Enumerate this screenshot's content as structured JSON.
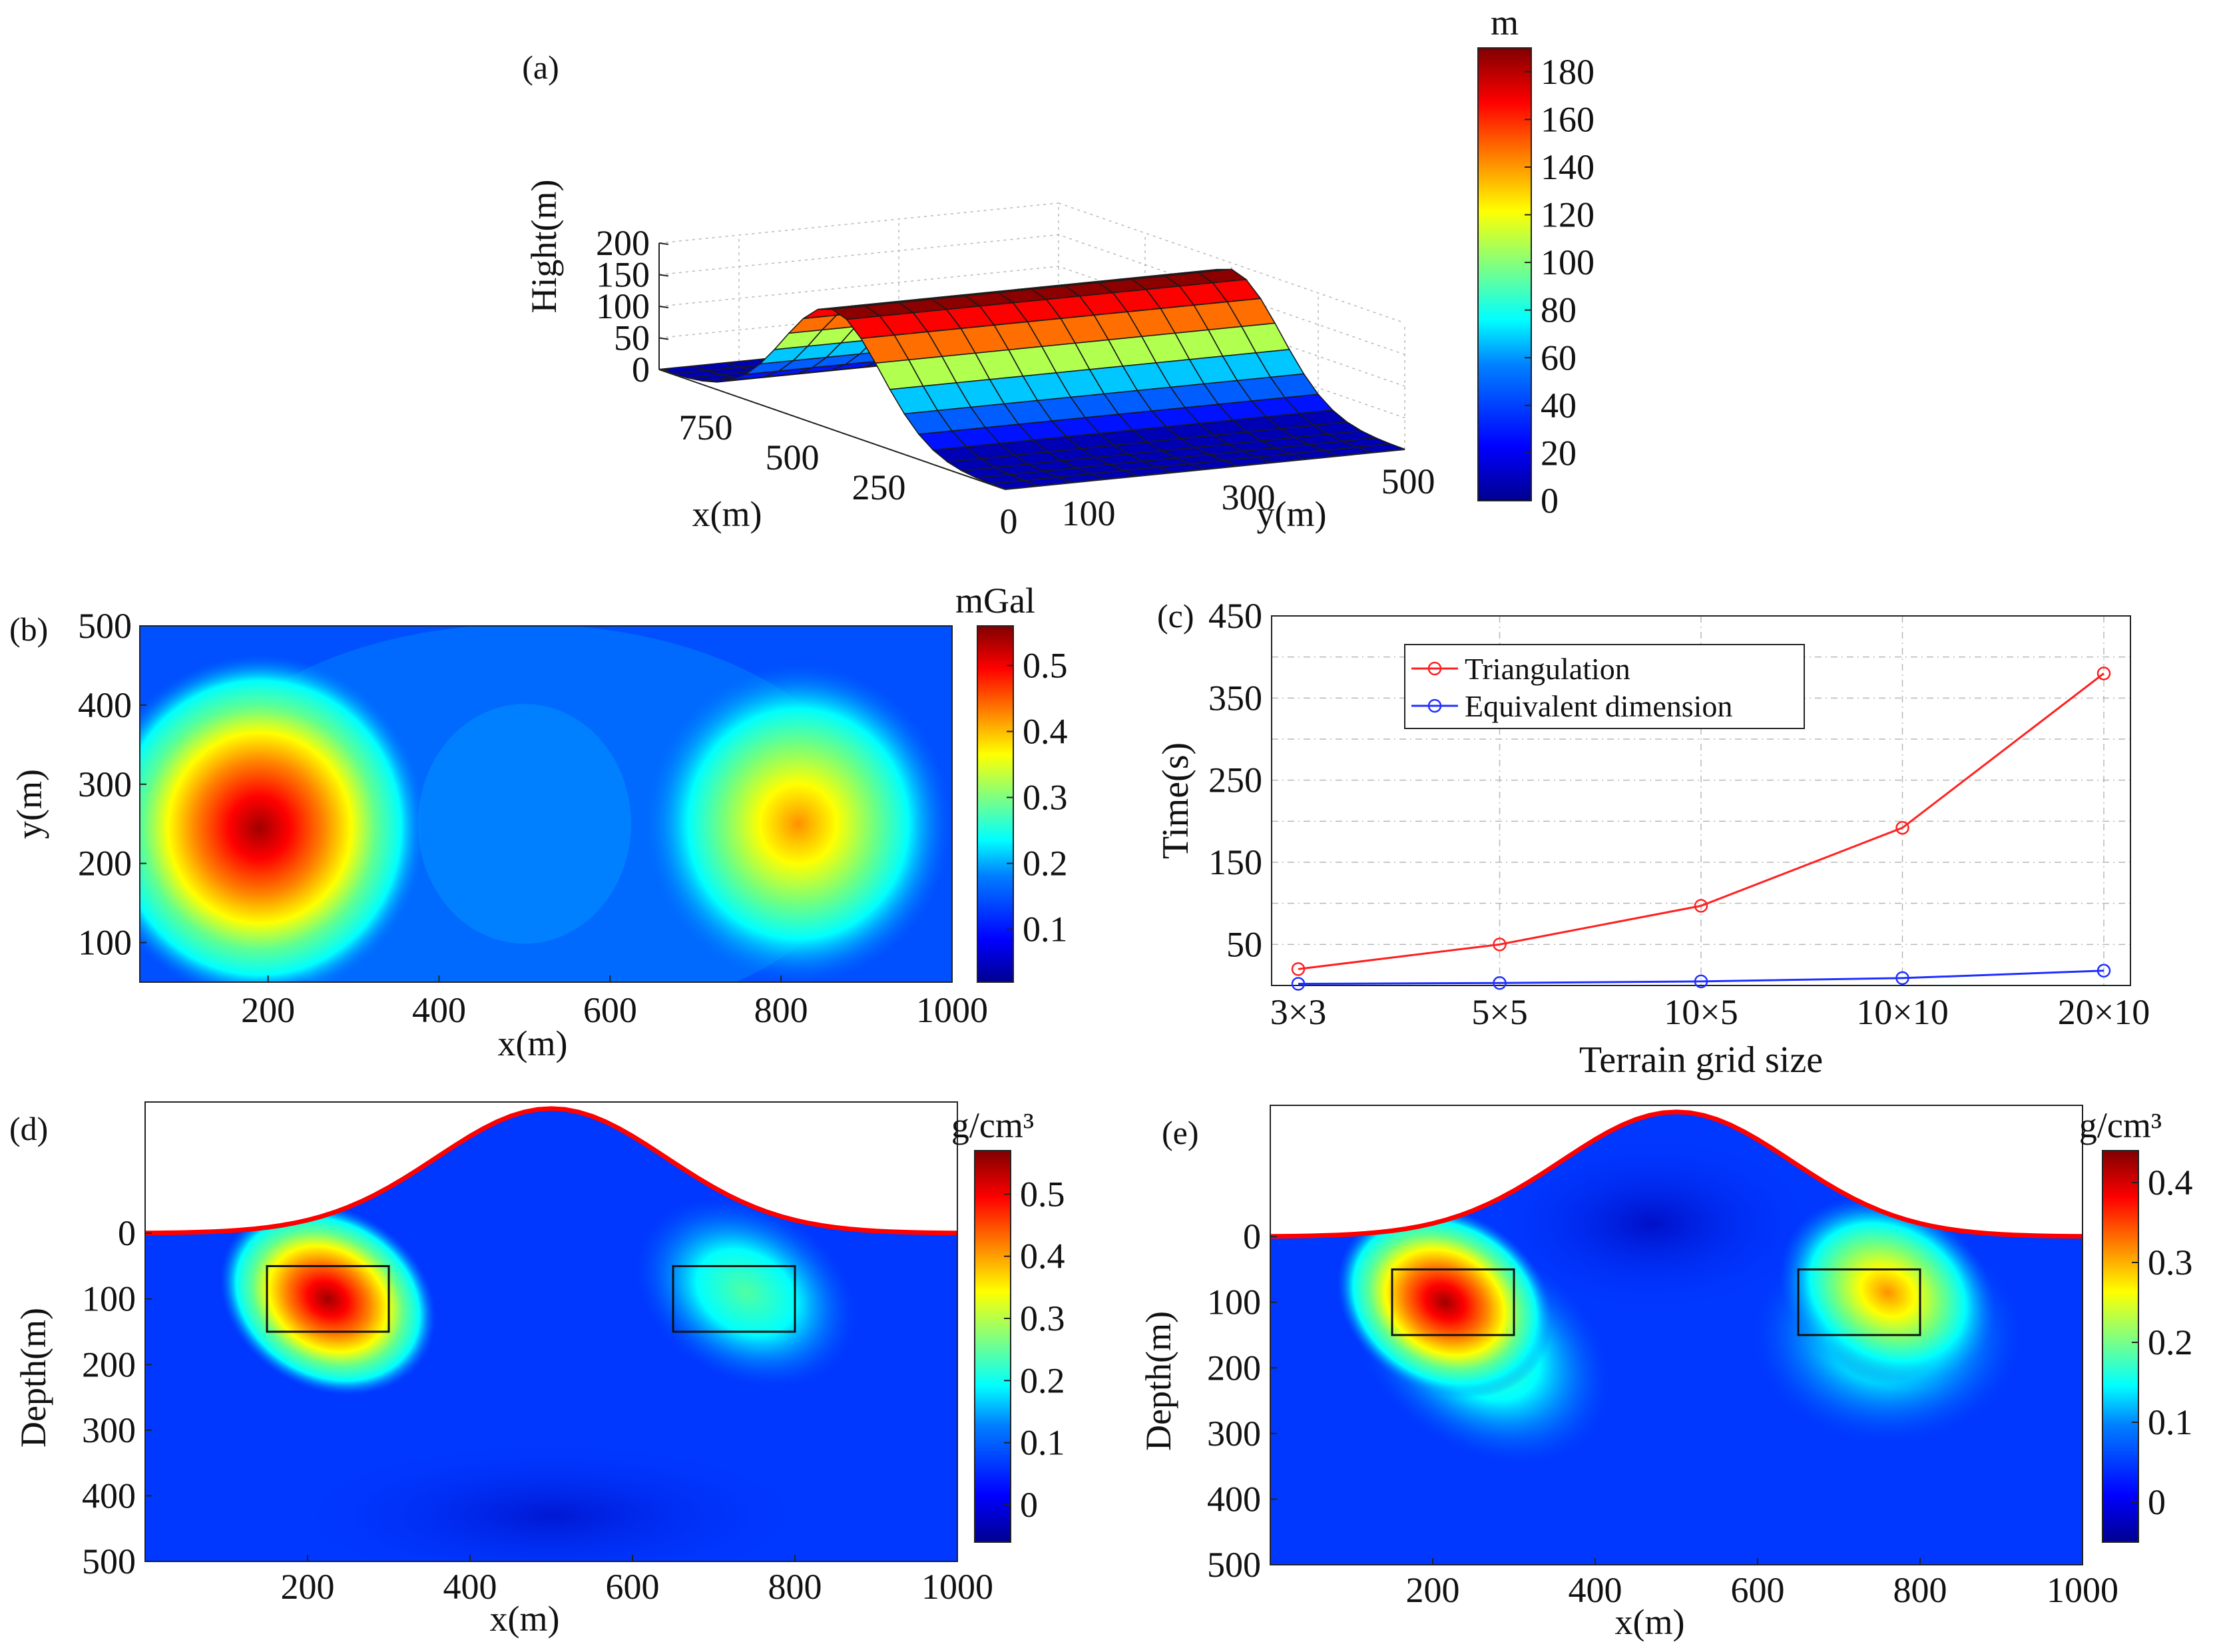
{
  "figure": "multi-panel",
  "colors": {
    "jet": [
      "#00008f",
      "#0000ff",
      "#0080ff",
      "#00ffff",
      "#80ff80",
      "#ffff00",
      "#ff8000",
      "#ff0000",
      "#800000"
    ],
    "triangulation": "#ff2020",
    "equivalent": "#2030ff",
    "topography_line": "#ff0000",
    "grid": "#b8b8b8"
  },
  "chart_data": [
    {
      "id": "a",
      "panel_label": "(a)",
      "type": "surface",
      "title": "",
      "xlabel": "x(m)",
      "ylabel": "y(m)",
      "zlabel": "Hight(m)",
      "x_ticks": [
        "250",
        "500",
        "750"
      ],
      "y_ticks": [
        "0",
        "100",
        "300",
        "500"
      ],
      "z_ticks": [
        "0",
        "50",
        "100",
        "150",
        "200"
      ],
      "xlim": [
        0,
        1000
      ],
      "ylim": [
        0,
        500
      ],
      "zlim": [
        0,
        200
      ],
      "surface_profile": {
        "description_of_values": "height vs x, constant along y",
        "x": [
          0,
          100,
          200,
          300,
          400,
          500,
          600,
          700,
          800,
          900,
          1000
        ],
        "z": [
          0,
          4,
          22,
          70,
          140,
          190,
          140,
          70,
          22,
          4,
          0
        ]
      },
      "colorbar": {
        "unit": "m",
        "ticks": [
          "0",
          "20",
          "40",
          "60",
          "80",
          "100",
          "120",
          "140",
          "160",
          "180"
        ],
        "range": [
          0,
          190
        ]
      }
    },
    {
      "id": "b",
      "panel_label": "(b)",
      "type": "heatmap",
      "xlabel": "x(m)",
      "ylabel": "y(m)",
      "x_ticks": [
        "200",
        "400",
        "600",
        "800",
        "1000"
      ],
      "y_ticks": [
        "100",
        "200",
        "300",
        "400",
        "500"
      ],
      "xlim": [
        50,
        1000
      ],
      "ylim": [
        50,
        500
      ],
      "anomalies": [
        {
          "x": 190,
          "y": 245,
          "peak": 0.55
        },
        {
          "x": 820,
          "y": 250,
          "peak": 0.38
        }
      ],
      "colorbar": {
        "unit": "mGal",
        "ticks": [
          "0.1",
          "0.2",
          "0.3",
          "0.4",
          "0.5"
        ],
        "range": [
          0.02,
          0.56
        ]
      }
    },
    {
      "id": "c",
      "panel_label": "(c)",
      "type": "line",
      "xlabel": "Terrain grid size",
      "ylabel": "Time(s)",
      "categories": [
        "3×3",
        "5×5",
        "10×5",
        "10×10",
        "20×10"
      ],
      "y_ticks": [
        "50",
        "150",
        "250",
        "350",
        "450"
      ],
      "ylim": [
        0,
        450
      ],
      "legend_position": "top-left",
      "series": [
        {
          "name": "Triangulation",
          "values": [
            20,
            50,
            97,
            192,
            380
          ]
        },
        {
          "name": "Equivalent dimension",
          "values": [
            2,
            3,
            5,
            9,
            18
          ]
        }
      ]
    },
    {
      "id": "d",
      "panel_label": "(d)",
      "type": "heatmap",
      "xlabel": "x(m)",
      "ylabel": "Depth(m)",
      "x_ticks": [
        "200",
        "400",
        "600",
        "800",
        "1000"
      ],
      "y_ticks": [
        "0",
        "100",
        "200",
        "300",
        "400",
        "500"
      ],
      "xlim": [
        0,
        1000
      ],
      "ylim": [
        500,
        -200
      ],
      "true_bodies": [
        {
          "x0": 150,
          "x1": 300,
          "z0": 50,
          "z1": 150
        },
        {
          "x0": 650,
          "x1": 800,
          "z0": 50,
          "z1": 150
        }
      ],
      "anomalies": [
        {
          "x": 225,
          "z": 100,
          "peak": 0.56
        },
        {
          "x": 740,
          "z": 90,
          "peak": 0.2
        }
      ],
      "colorbar": {
        "unit": "g/cm³",
        "ticks": [
          "0",
          "0.1",
          "0.2",
          "0.3",
          "0.4",
          "0.5"
        ],
        "range": [
          -0.06,
          0.57
        ]
      }
    },
    {
      "id": "e",
      "panel_label": "(e)",
      "type": "heatmap",
      "xlabel": "x(m)",
      "ylabel": "Depth(m)",
      "x_ticks": [
        "200",
        "400",
        "600",
        "800",
        "1000"
      ],
      "y_ticks": [
        "0",
        "100",
        "200",
        "300",
        "400",
        "500"
      ],
      "xlim": [
        0,
        1000
      ],
      "ylim": [
        500,
        -200
      ],
      "true_bodies": [
        {
          "x0": 150,
          "x1": 300,
          "z0": 50,
          "z1": 150
        },
        {
          "x0": 650,
          "x1": 800,
          "z0": 50,
          "z1": 150
        }
      ],
      "anomalies": [
        {
          "x": 215,
          "z": 100,
          "peak": 0.43
        },
        {
          "x": 760,
          "z": 85,
          "peak": 0.28
        }
      ],
      "colorbar": {
        "unit": "g/cm³",
        "ticks": [
          "0",
          "0.1",
          "0.2",
          "0.3",
          "0.4"
        ],
        "range": [
          -0.05,
          0.44
        ]
      }
    }
  ]
}
